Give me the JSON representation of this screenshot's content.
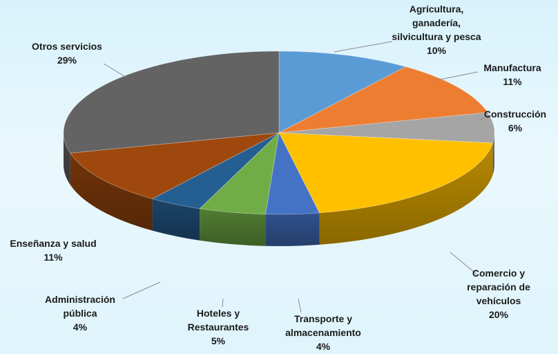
{
  "chart_data": {
    "type": "pie",
    "title": "",
    "slices": [
      {
        "label_lines": [
          "Agrícultura,",
          "ganadería,",
          "silvicultura y pesca"
        ],
        "value": 10,
        "pct": "10%",
        "color": "#5b9bd5"
      },
      {
        "label_lines": [
          "Manufactura"
        ],
        "value": 11,
        "pct": "11%",
        "color": "#ed7d31"
      },
      {
        "label_lines": [
          "Construcción"
        ],
        "value": 6,
        "pct": "6%",
        "color": "#a5a5a5"
      },
      {
        "label_lines": [
          "Comercio y",
          "reparación de",
          "vehículos"
        ],
        "value": 20,
        "pct": "20%",
        "color": "#ffc000"
      },
      {
        "label_lines": [
          "Transporte y",
          "almacenamiento"
        ],
        "value": 4,
        "pct": "4%",
        "color": "#4472c4"
      },
      {
        "label_lines": [
          "Hoteles y",
          "Restaurantes"
        ],
        "value": 5,
        "pct": "5%",
        "color": "#70ad47"
      },
      {
        "label_lines": [
          "Administración",
          "pública"
        ],
        "value": 4,
        "pct": "4%",
        "color": "#255e91"
      },
      {
        "label_lines": [
          "Enseñanza y salud"
        ],
        "value": 11,
        "pct": "11%",
        "color": "#9e480e"
      },
      {
        "label_lines": [
          "Otros servicios"
        ],
        "value": 29,
        "pct": "29%",
        "color": "#636363"
      }
    ]
  }
}
